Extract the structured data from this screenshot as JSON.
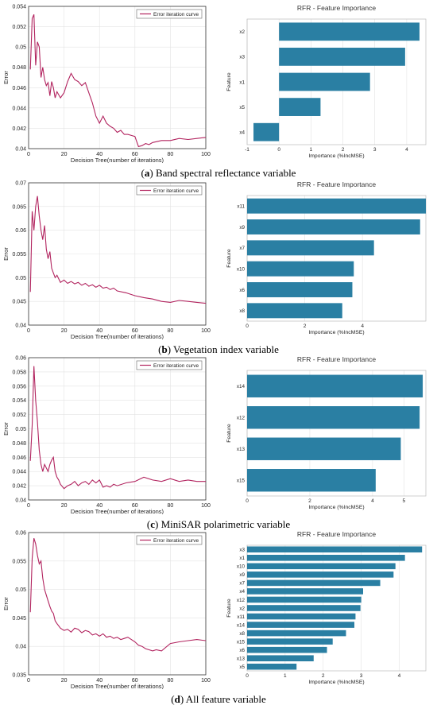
{
  "panels": [
    {
      "letter": "a",
      "caption_text": "Band spectral reflectance variable",
      "line_chart": {
        "type": "line",
        "ylabel": "Error",
        "xlabel": "Decision Tree(number of iterations)",
        "legend": "Error iteration curve",
        "xlim": [
          0,
          100
        ],
        "ylim": [
          0.04,
          0.054
        ],
        "xticks": [
          "0",
          "20",
          "40",
          "60",
          "80",
          "100"
        ],
        "yticks": [
          "0.04",
          "0.042",
          "0.044",
          "0.046",
          "0.048",
          "0.05",
          "0.052",
          "0.054"
        ],
        "grid": true,
        "x": [
          1,
          2,
          3,
          4,
          5,
          6,
          7,
          8,
          9,
          10,
          11,
          12,
          13,
          14,
          15,
          16,
          18,
          20,
          22,
          24,
          26,
          28,
          30,
          32,
          34,
          36,
          38,
          40,
          42,
          44,
          46,
          48,
          50,
          52,
          54,
          56,
          58,
          60,
          62,
          64,
          66,
          68,
          70,
          75,
          80,
          85,
          90,
          95,
          100
        ],
        "y": [
          0.0478,
          0.0528,
          0.0532,
          0.0482,
          0.0505,
          0.05,
          0.047,
          0.048,
          0.0468,
          0.0462,
          0.0465,
          0.0452,
          0.0466,
          0.046,
          0.045,
          0.0456,
          0.045,
          0.0455,
          0.0466,
          0.0474,
          0.0468,
          0.0466,
          0.0462,
          0.0465,
          0.0455,
          0.0445,
          0.0432,
          0.0425,
          0.0432,
          0.0425,
          0.0422,
          0.042,
          0.0416,
          0.0418,
          0.0414,
          0.0414,
          0.0413,
          0.0412,
          0.0402,
          0.0403,
          0.0405,
          0.0404,
          0.0406,
          0.0408,
          0.0408,
          0.041,
          0.0409,
          0.041,
          0.0411
        ]
      },
      "bar_chart": {
        "type": "bar",
        "title": "RFR - Feature Importance",
        "xlabel": "Importance (%IncMSE)",
        "ylabel": "Feature",
        "categories": [
          "x2",
          "x3",
          "x1",
          "x5",
          "x4"
        ],
        "values": [
          4.4,
          3.95,
          2.85,
          1.3,
          -0.8
        ],
        "xlim": [
          -1,
          4.6
        ],
        "xticks": [
          "-1",
          "0",
          "1",
          "2",
          "3",
          "4"
        ],
        "grid": true
      }
    },
    {
      "letter": "b",
      "caption_text": "Vegetation index variable",
      "line_chart": {
        "type": "line",
        "ylabel": "Error",
        "xlabel": "Decision Tree(number of iterations)",
        "legend": "Error iteration curve",
        "xlim": [
          0,
          100
        ],
        "ylim": [
          0.04,
          0.07
        ],
        "xticks": [
          "0",
          "20",
          "40",
          "60",
          "80",
          "100"
        ],
        "yticks": [
          "0.04",
          "0.045",
          "0.05",
          "0.055",
          "0.06",
          "0.065",
          "0.07"
        ],
        "grid": true,
        "x": [
          1,
          2,
          3,
          4,
          5,
          6,
          7,
          8,
          9,
          10,
          11,
          12,
          13,
          14,
          15,
          16,
          18,
          20,
          22,
          24,
          26,
          28,
          30,
          32,
          34,
          36,
          38,
          40,
          42,
          44,
          46,
          48,
          50,
          55,
          60,
          65,
          70,
          75,
          80,
          85,
          90,
          95,
          100
        ],
        "y": [
          0.047,
          0.064,
          0.06,
          0.065,
          0.0672,
          0.063,
          0.06,
          0.058,
          0.061,
          0.056,
          0.054,
          0.0555,
          0.052,
          0.051,
          0.05,
          0.0505,
          0.049,
          0.0495,
          0.0488,
          0.0492,
          0.0487,
          0.049,
          0.0484,
          0.0488,
          0.0482,
          0.0485,
          0.048,
          0.0484,
          0.0478,
          0.048,
          0.0475,
          0.0478,
          0.0472,
          0.0468,
          0.0462,
          0.0458,
          0.0455,
          0.045,
          0.0448,
          0.0452,
          0.045,
          0.0448,
          0.0446
        ]
      },
      "bar_chart": {
        "type": "bar",
        "title": "RFR - Feature Importance",
        "xlabel": "Importance (%IncMSE)",
        "ylabel": "Feature",
        "categories": [
          "x11",
          "x9",
          "x7",
          "x10",
          "x6",
          "x8"
        ],
        "values": [
          6.2,
          6.0,
          4.4,
          3.7,
          3.65,
          3.3
        ],
        "xlim": [
          0,
          6.2
        ],
        "xticks": [
          "0",
          "2",
          "4"
        ],
        "grid": true
      }
    },
    {
      "letter": "c",
      "caption_text": "MiniSAR polarimetric variable",
      "line_chart": {
        "type": "line",
        "ylabel": "Error",
        "xlabel": "Decision Tree(number of iterations)",
        "legend": "Error iteration curve",
        "xlim": [
          0,
          100
        ],
        "ylim": [
          0.04,
          0.06
        ],
        "xticks": [
          "0",
          "20",
          "40",
          "60",
          "80",
          "100"
        ],
        "yticks": [
          "0.04",
          "0.042",
          "0.044",
          "0.046",
          "0.048",
          "0.05",
          "0.052",
          "0.054",
          "0.056",
          "0.058",
          "0.06"
        ],
        "grid": true,
        "x": [
          1,
          2,
          3,
          4,
          5,
          6,
          7,
          8,
          9,
          10,
          11,
          12,
          13,
          14,
          15,
          16,
          17,
          18,
          20,
          22,
          24,
          26,
          28,
          30,
          32,
          34,
          36,
          38,
          40,
          42,
          44,
          46,
          48,
          50,
          55,
          60,
          65,
          70,
          75,
          80,
          85,
          90,
          95,
          100
        ],
        "y": [
          0.0455,
          0.0505,
          0.0588,
          0.054,
          0.051,
          0.047,
          0.045,
          0.044,
          0.045,
          0.0445,
          0.044,
          0.045,
          0.0456,
          0.046,
          0.044,
          0.0432,
          0.0428,
          0.0422,
          0.0416,
          0.042,
          0.0422,
          0.0426,
          0.042,
          0.0424,
          0.0426,
          0.0422,
          0.0428,
          0.0424,
          0.0428,
          0.0418,
          0.042,
          0.0418,
          0.0422,
          0.042,
          0.0424,
          0.0426,
          0.0432,
          0.0428,
          0.0426,
          0.043,
          0.0426,
          0.0428,
          0.0426,
          0.0426
        ]
      },
      "bar_chart": {
        "type": "bar",
        "title": "RFR - Feature Importance",
        "xlabel": "Importance (%IncMSE)",
        "ylabel": "Feature",
        "categories": [
          "x14",
          "x12",
          "x13",
          "x15"
        ],
        "values": [
          5.6,
          5.5,
          4.9,
          4.1
        ],
        "xlim": [
          0,
          5.7
        ],
        "xticks": [
          "0",
          "2",
          "4",
          "5"
        ],
        "grid": true
      }
    },
    {
      "letter": "d",
      "caption_text": "All feature variable",
      "line_chart": {
        "type": "line",
        "ylabel": "Error",
        "xlabel": "Decision Tree(number of iterations)",
        "legend": "Error iteration curve",
        "xlim": [
          0,
          100
        ],
        "ylim": [
          0.035,
          0.06
        ],
        "xticks": [
          "0",
          "20",
          "40",
          "60",
          "80",
          "100"
        ],
        "yticks": [
          "0.035",
          "0.04",
          "0.045",
          "0.05",
          "0.055",
          "0.06"
        ],
        "grid": true,
        "x": [
          1,
          2,
          3,
          4,
          5,
          6,
          7,
          8,
          9,
          10,
          11,
          12,
          13,
          14,
          15,
          16,
          18,
          20,
          22,
          24,
          26,
          28,
          30,
          32,
          34,
          36,
          38,
          40,
          42,
          44,
          46,
          48,
          50,
          52,
          54,
          56,
          58,
          60,
          62,
          64,
          66,
          68,
          70,
          72,
          75,
          80,
          85,
          90,
          95,
          100
        ],
        "y": [
          0.046,
          0.0555,
          0.059,
          0.058,
          0.056,
          0.0545,
          0.055,
          0.052,
          0.05,
          0.049,
          0.048,
          0.047,
          0.0462,
          0.0458,
          0.0445,
          0.044,
          0.0432,
          0.0428,
          0.043,
          0.0425,
          0.0432,
          0.043,
          0.0424,
          0.0428,
          0.0426,
          0.042,
          0.0422,
          0.0418,
          0.0422,
          0.0416,
          0.0418,
          0.0414,
          0.0416,
          0.0412,
          0.0414,
          0.0416,
          0.0412,
          0.0408,
          0.0402,
          0.04,
          0.0396,
          0.0394,
          0.0392,
          0.0394,
          0.0392,
          0.0405,
          0.0408,
          0.041,
          0.0412,
          0.041
        ]
      },
      "bar_chart": {
        "type": "bar",
        "title": "RFR - Feature Importance",
        "xlabel": "Importance (%IncMSE)",
        "ylabel": "Feature",
        "categories": [
          "x3",
          "x1",
          "x10",
          "x9",
          "x7",
          "x4",
          "x12",
          "x2",
          "x11",
          "x14",
          "x8",
          "x15",
          "x6",
          "x13",
          "x5"
        ],
        "values": [
          4.6,
          4.15,
          3.9,
          3.85,
          3.5,
          3.05,
          3.0,
          2.98,
          2.85,
          2.82,
          2.6,
          2.25,
          2.1,
          1.75,
          1.3
        ],
        "xlim": [
          0,
          4.7
        ],
        "xticks": [
          "0",
          "1",
          "2",
          "3",
          "4"
        ],
        "grid": true
      }
    }
  ],
  "colors": {
    "line": "#b2245f",
    "bar": "#2a7fa3",
    "axis": "#000000",
    "grid": "#e3e3e3"
  }
}
